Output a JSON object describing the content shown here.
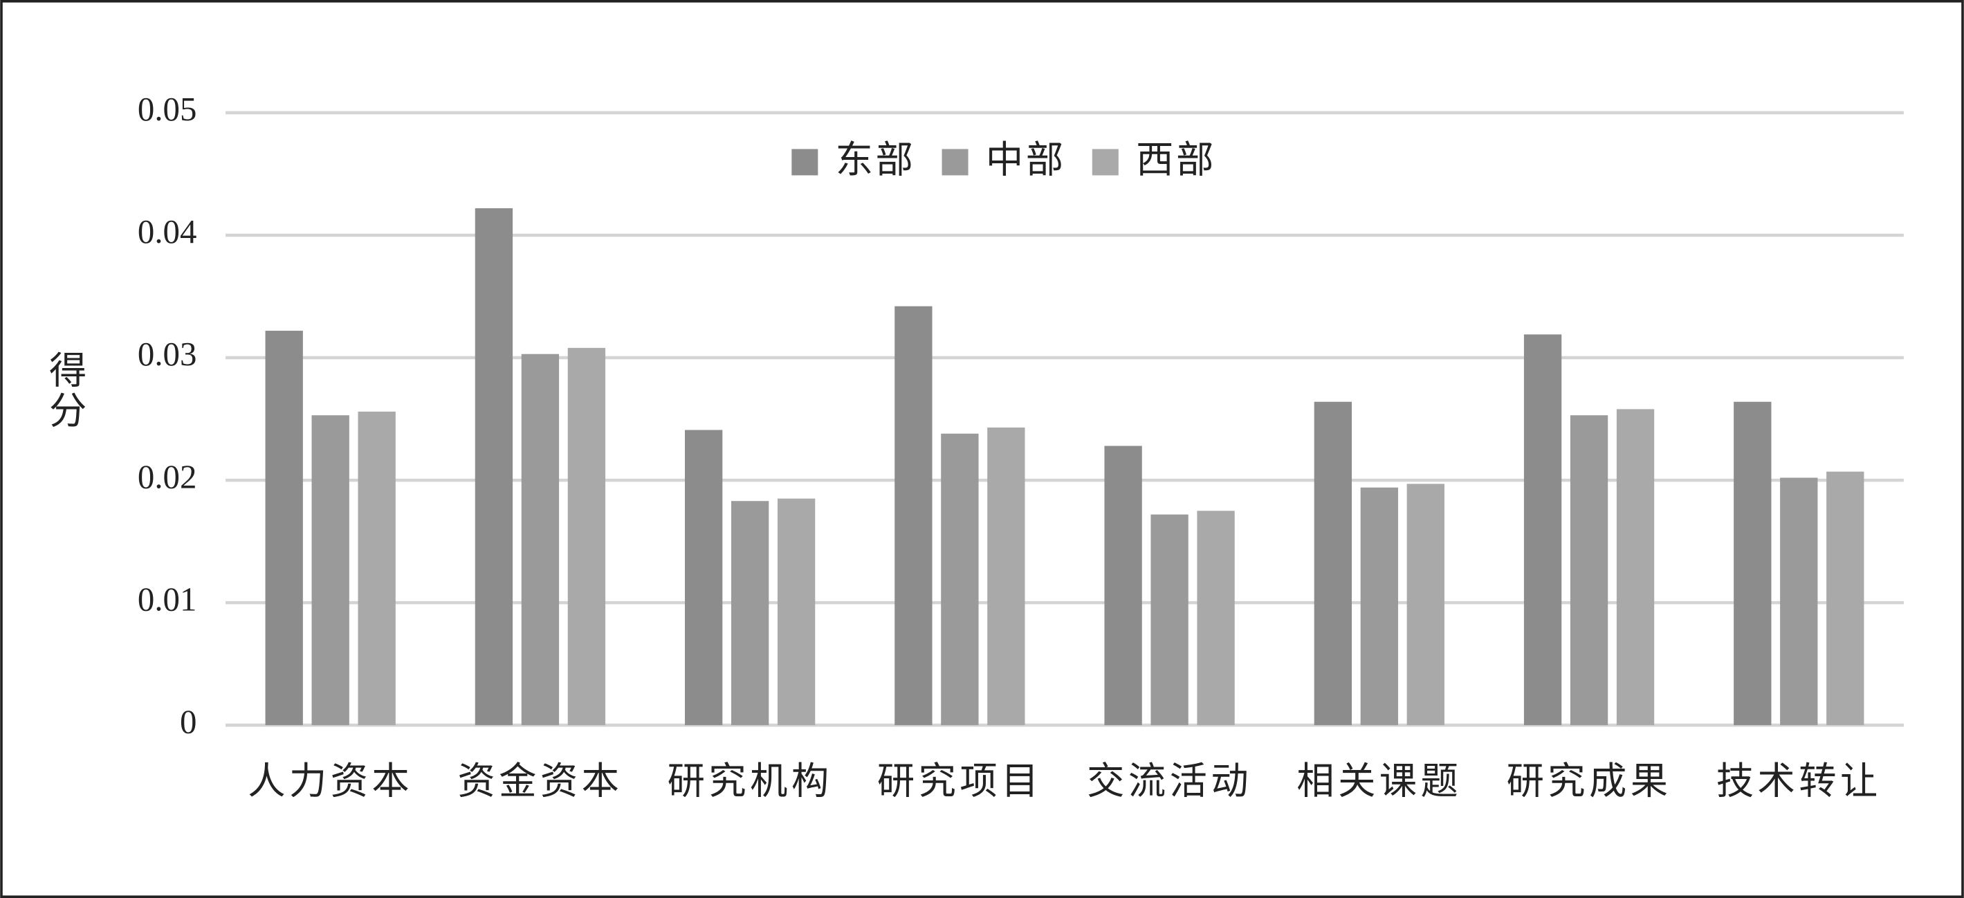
{
  "chart_data": {
    "type": "bar",
    "y_label": "得分",
    "categories": [
      "人力资本",
      "资金资本",
      "研究机构",
      "研究项目",
      "交流活动",
      "相关课题",
      "研究成果",
      "技术转让"
    ],
    "series": [
      {
        "name": "东部",
        "color": "#8c8c8c",
        "values": [
          0.0322,
          0.0422,
          0.0241,
          0.0342,
          0.0228,
          0.0264,
          0.0319,
          0.0264
        ]
      },
      {
        "name": "中部",
        "color": "#9a9a9a",
        "values": [
          0.0253,
          0.0303,
          0.0183,
          0.0238,
          0.0172,
          0.0194,
          0.0253,
          0.0202
        ]
      },
      {
        "name": "西部",
        "color": "#a9a9a9",
        "values": [
          0.0256,
          0.0308,
          0.0185,
          0.0243,
          0.0175,
          0.0197,
          0.0258,
          0.0207
        ]
      }
    ],
    "ylim": [
      0,
      0.05
    ],
    "yticks": [
      0,
      0.01,
      0.02,
      0.03,
      0.04,
      0.05
    ],
    "grid": true,
    "legend": "top"
  }
}
